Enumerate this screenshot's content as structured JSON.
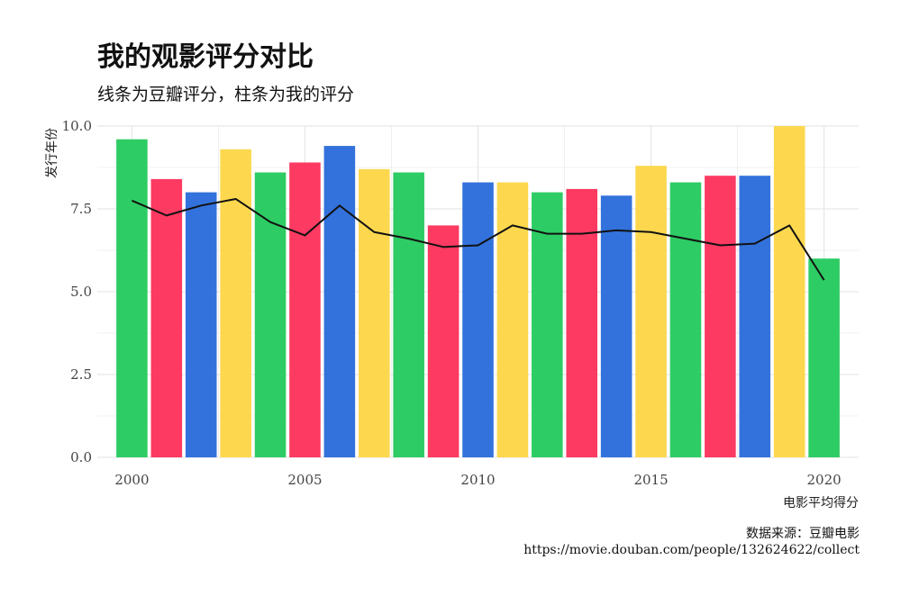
{
  "header": {
    "title": "我的观影评分对比",
    "subtitle": "线条为豆瓣评分，柱条为我的评分"
  },
  "caption": {
    "line1": "数据来源：豆瓣电影",
    "line2": "https://movie.douban.com/people/132624622/collect"
  },
  "colors": {
    "bar_palette": [
      "#2ecc64",
      "#fc3a62",
      "#3372dc",
      "#fdd84f"
    ],
    "line": "#111111",
    "grid": "#e6e6e6"
  },
  "chart_data": {
    "type": "bar",
    "xlabel": "电影平均得分",
    "ylabel": "发行年份",
    "x": [
      2000,
      2001,
      2002,
      2003,
      2004,
      2005,
      2006,
      2007,
      2008,
      2009,
      2010,
      2011,
      2012,
      2013,
      2014,
      2015,
      2016,
      2017,
      2018,
      2019,
      2020
    ],
    "xticks": [
      "2000",
      "2005",
      "2010",
      "2015",
      "2020"
    ],
    "yticks": [
      "0.0",
      "2.5",
      "5.0",
      "7.5",
      "10.0"
    ],
    "ylim": [
      0,
      10
    ],
    "grid": true,
    "series": [
      {
        "kind": "bar",
        "values": [
          9.6,
          8.4,
          8.0,
          9.3,
          8.6,
          8.9,
          9.4,
          8.7,
          8.6,
          7.0,
          8.3,
          8.3,
          8.0,
          8.1,
          7.9,
          8.8,
          8.3,
          8.5,
          8.5,
          10.0,
          6.0
        ]
      },
      {
        "kind": "line",
        "values": [
          7.75,
          7.3,
          7.6,
          7.8,
          7.1,
          6.7,
          7.6,
          6.8,
          6.6,
          6.35,
          6.4,
          7.0,
          6.75,
          6.75,
          6.85,
          6.8,
          6.6,
          6.4,
          6.45,
          7.0,
          5.35
        ]
      }
    ]
  }
}
